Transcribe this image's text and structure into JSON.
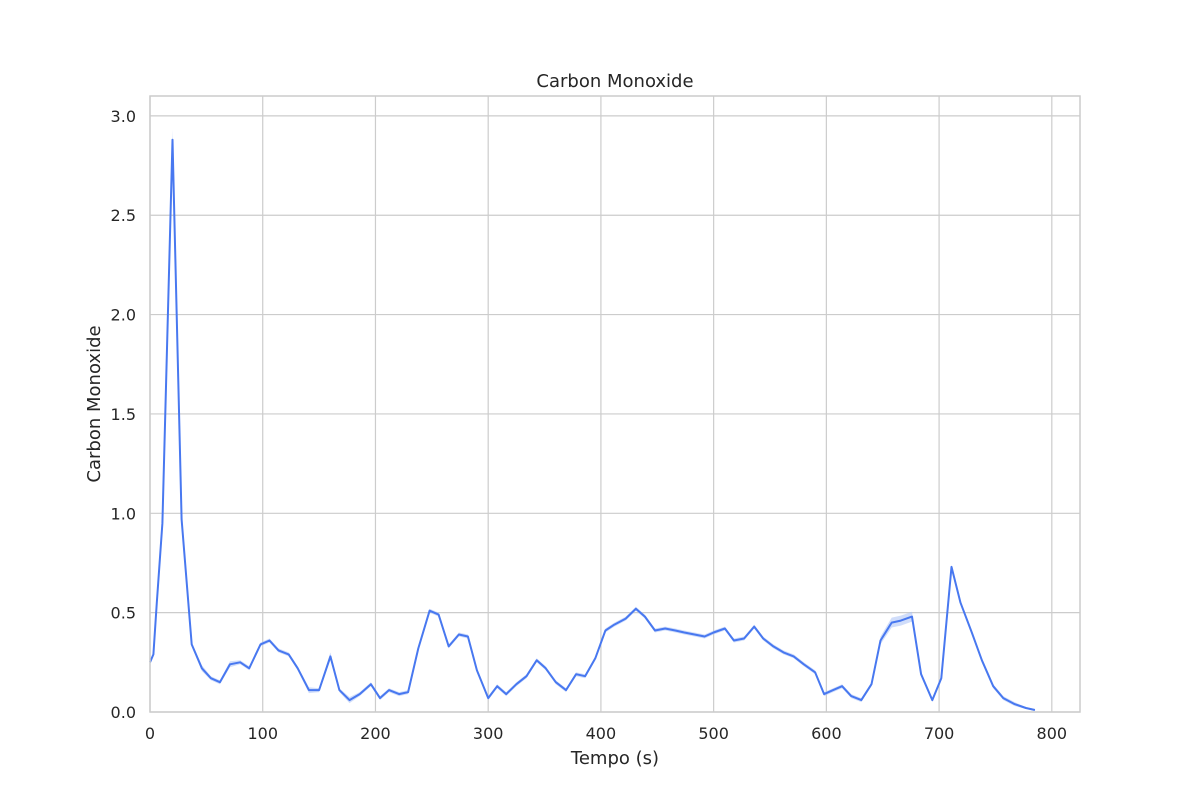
{
  "chart_data": {
    "type": "line",
    "title": "Carbon Monoxide",
    "xlabel": "Tempo (s)",
    "ylabel": "Carbon Monoxide",
    "xlim": [
      0,
      825
    ],
    "ylim": [
      0,
      3.1
    ],
    "xticks": [
      0,
      100,
      200,
      300,
      400,
      500,
      600,
      700,
      800
    ],
    "yticks": [
      0.0,
      0.5,
      1.0,
      1.5,
      2.0,
      2.5,
      3.0
    ],
    "ytick_labels": [
      "0.0",
      "0.5",
      "1.0",
      "1.5",
      "2.0",
      "2.5",
      "3.0"
    ],
    "grid": true,
    "series": [
      {
        "color": "#4878f0",
        "band_color": "#a9c1f5",
        "x": [
          0,
          3,
          6,
          11,
          20,
          28,
          37,
          46,
          54,
          62,
          71,
          80,
          88,
          98,
          106,
          114,
          123,
          131,
          141,
          150,
          160,
          168,
          177,
          186,
          196,
          204,
          212,
          221,
          229,
          238,
          248,
          256,
          265,
          274,
          282,
          290,
          300,
          308,
          316,
          325,
          334,
          343,
          351,
          360,
          369,
          378,
          386,
          395,
          404,
          412,
          422,
          431,
          439,
          448,
          457,
          466,
          474,
          483,
          492,
          500,
          510,
          518,
          527,
          536,
          544,
          553,
          562,
          571,
          580,
          590,
          598,
          606,
          614,
          622,
          631,
          640,
          648,
          658,
          666,
          676,
          684,
          694,
          702,
          711,
          719,
          729,
          738,
          748,
          757,
          767,
          777,
          785
        ],
        "y": [
          0.25,
          0.29,
          0.55,
          0.95,
          2.88,
          0.97,
          0.34,
          0.22,
          0.17,
          0.15,
          0.24,
          0.25,
          0.22,
          0.34,
          0.36,
          0.31,
          0.29,
          0.22,
          0.11,
          0.11,
          0.28,
          0.11,
          0.06,
          0.09,
          0.14,
          0.07,
          0.11,
          0.09,
          0.1,
          0.32,
          0.51,
          0.49,
          0.33,
          0.39,
          0.38,
          0.21,
          0.07,
          0.13,
          0.09,
          0.14,
          0.18,
          0.26,
          0.22,
          0.15,
          0.11,
          0.19,
          0.18,
          0.27,
          0.41,
          0.44,
          0.47,
          0.52,
          0.48,
          0.41,
          0.42,
          0.41,
          0.4,
          0.39,
          0.38,
          0.4,
          0.42,
          0.36,
          0.37,
          0.43,
          0.37,
          0.33,
          0.3,
          0.28,
          0.24,
          0.2,
          0.09,
          0.11,
          0.13,
          0.08,
          0.06,
          0.14,
          0.36,
          0.45,
          0.46,
          0.48,
          0.19,
          0.06,
          0.17,
          0.73,
          0.55,
          0.4,
          0.26,
          0.13,
          0.07,
          0.04,
          0.02,
          0.01
        ],
        "band_halfwidth": [
          0.01,
          0.01,
          0.02,
          0.02,
          0.05,
          0.02,
          0.01,
          0.015,
          0.01,
          0.01,
          0.015,
          0.01,
          0.01,
          0.01,
          0.01,
          0.01,
          0.01,
          0.01,
          0.015,
          0.01,
          0.02,
          0.01,
          0.015,
          0.01,
          0.01,
          0.01,
          0.01,
          0.01,
          0.01,
          0.01,
          0.01,
          0.01,
          0.01,
          0.01,
          0.01,
          0.01,
          0.01,
          0.01,
          0.01,
          0.01,
          0.01,
          0.01,
          0.01,
          0.01,
          0.01,
          0.01,
          0.01,
          0.01,
          0.01,
          0.01,
          0.01,
          0.01,
          0.01,
          0.01,
          0.01,
          0.01,
          0.01,
          0.01,
          0.01,
          0.01,
          0.01,
          0.01,
          0.01,
          0.01,
          0.01,
          0.01,
          0.01,
          0.01,
          0.01,
          0.01,
          0.01,
          0.01,
          0.01,
          0.01,
          0.01,
          0.01,
          0.02,
          0.025,
          0.025,
          0.025,
          0.01,
          0.01,
          0.01,
          0.01,
          0.01,
          0.01,
          0.01,
          0.01,
          0.01,
          0.01,
          0.005,
          0.005
        ]
      }
    ]
  }
}
